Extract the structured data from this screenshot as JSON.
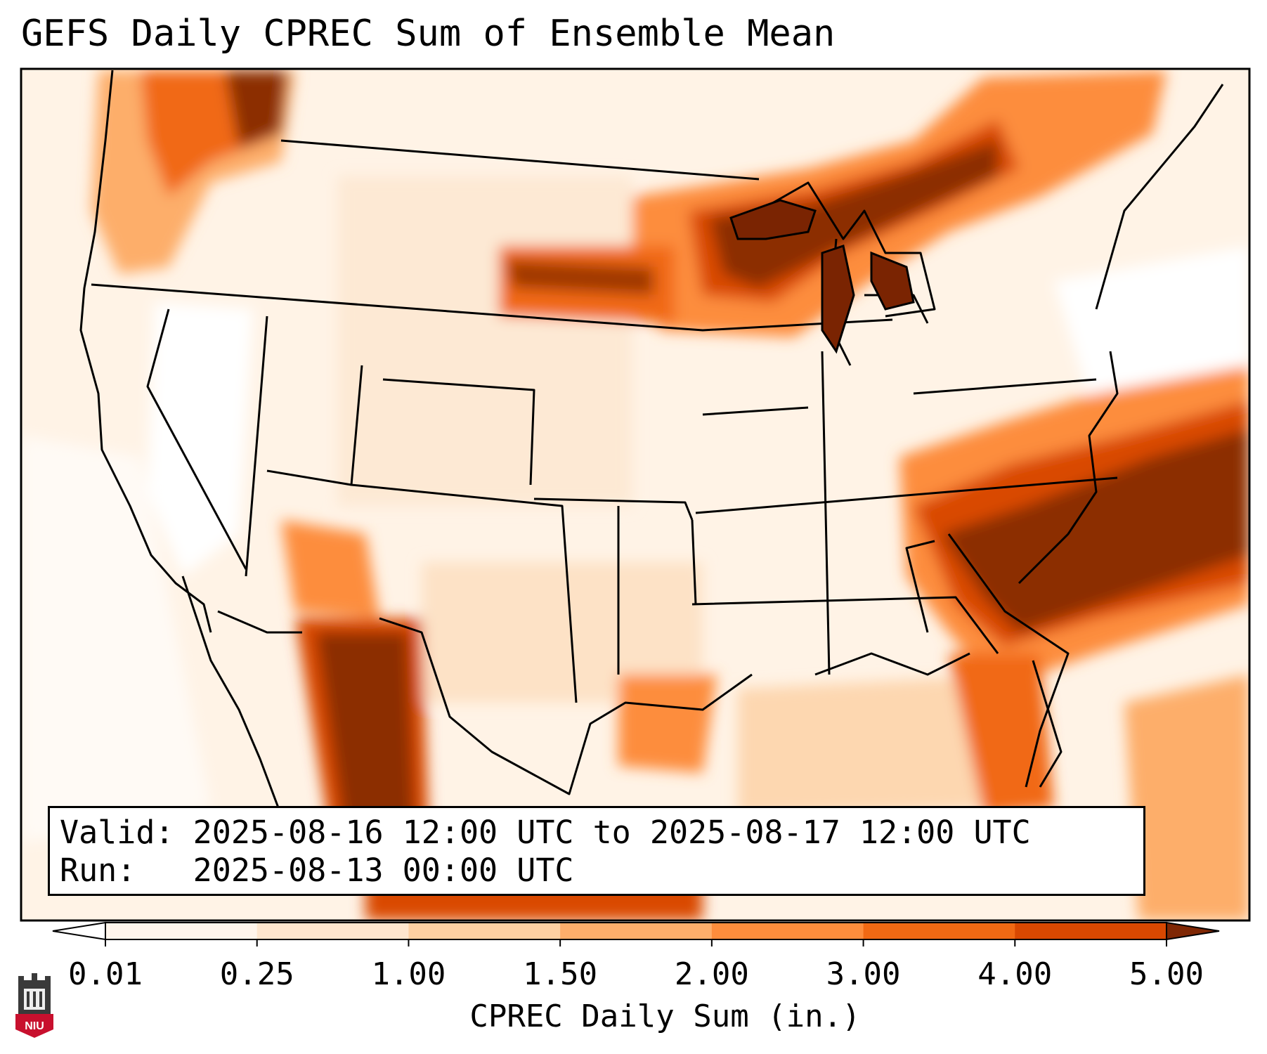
{
  "title": "GEFS Daily CPREC Sum of Ensemble Mean",
  "info": {
    "valid_label": "Valid:",
    "valid_value": "2025-08-16 12:00 UTC to 2025-08-17 12:00 UTC",
    "run_label": "Run:",
    "run_value": "2025-08-13 00:00 UTC"
  },
  "colorbar": {
    "label": "CPREC Daily Sum (in.)",
    "ticks": [
      "0.01",
      "0.25",
      "1.00",
      "1.50",
      "2.00",
      "3.00",
      "4.00",
      "5.00"
    ],
    "colors": [
      "#fff5eb",
      "#fee6ce",
      "#fdd0a2",
      "#fdae6b",
      "#fd8d3c",
      "#f16913",
      "#d94801",
      "#8c2d04"
    ],
    "under_color": "#ffffff",
    "over_color": "#7f2704"
  },
  "logo": {
    "text": "NIU",
    "colors": {
      "tower": "#3a3a3a",
      "shield": "#c8102e"
    }
  },
  "precip_regions": [
    {
      "name": "pacific-northwest",
      "peak": "5.00"
    },
    {
      "name": "upper-great-lakes",
      "peak": "5.00"
    },
    {
      "name": "south-carolina",
      "peak": "5.00"
    },
    {
      "name": "western-atlantic-band",
      "peak": "5.00"
    },
    {
      "name": "sierra-madre-mexico",
      "peak": "5.00"
    },
    {
      "name": "south-dakota",
      "peak": "4.00"
    }
  ]
}
